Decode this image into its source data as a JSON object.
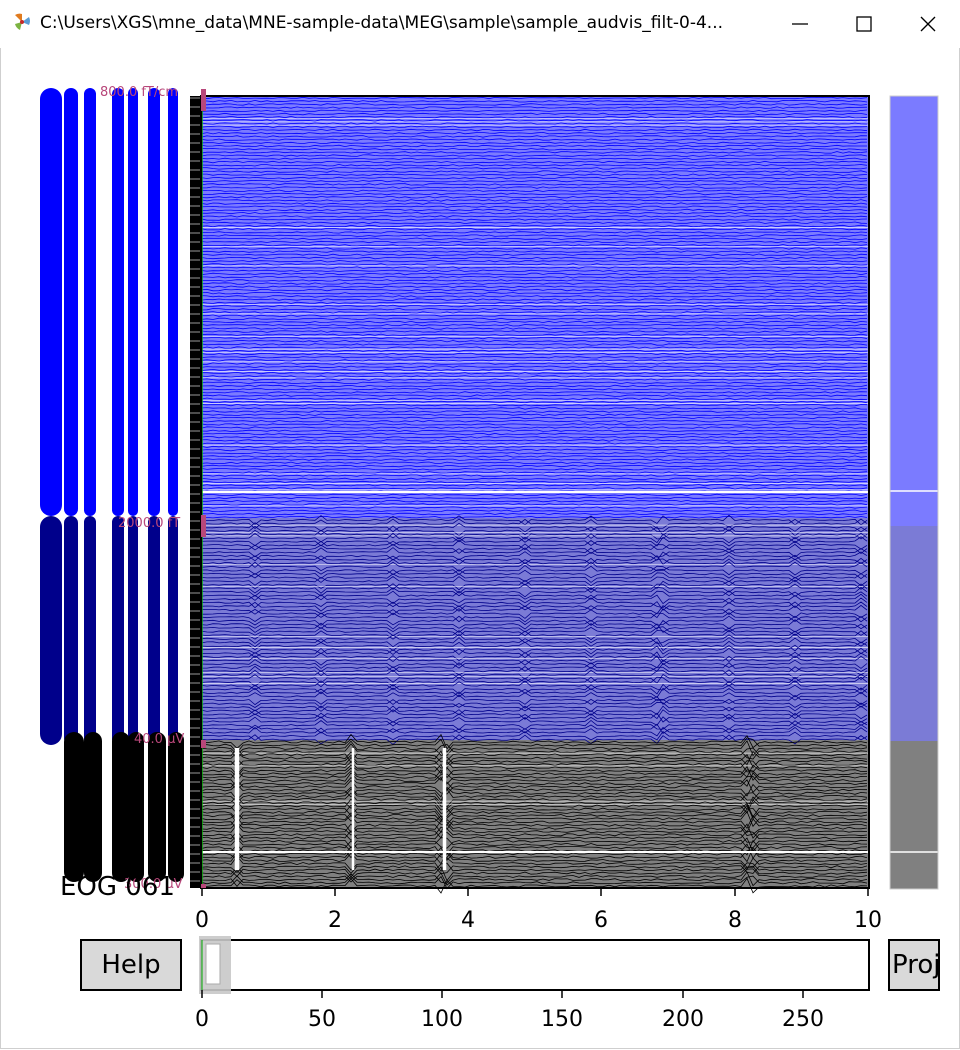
{
  "window": {
    "title": "C:\\Users\\XGS\\mne_data\\MNE-sample-data\\MEG\\sample\\sample_audvis_filt-0-4...",
    "minimize_icon": "minimize-icon",
    "maximize_icon": "maximize-icon",
    "close_icon": "close-icon"
  },
  "plot": {
    "x_ticks": [
      "0",
      "2",
      "4",
      "6",
      "8",
      "10"
    ],
    "x_range": [
      0,
      10
    ],
    "scalebars": [
      {
        "label": "800.0 fT/cm",
        "channel_type": "grad"
      },
      {
        "label": "2000.0 fT",
        "channel_type": "mag"
      },
      {
        "label": "40.0 µV",
        "channel_type": "eeg"
      },
      {
        "label": "300.0 µV",
        "channel_type": "eog"
      }
    ],
    "last_channel_label": "EOG 061",
    "colors": {
      "grad": "#0000ff",
      "mag": "#00008b",
      "eeg": "#000000",
      "eog": "#000000",
      "grad_bg": "#7b7bff",
      "mag_bg": "#7b7bd6",
      "eeg_bg": "#808080",
      "scalebar": "#b8477a",
      "cursor": "#00aa00"
    }
  },
  "navigation": {
    "help_label": "Help",
    "proj_label": "Proj",
    "time_ticks": [
      "0",
      "50",
      "100",
      "150",
      "200",
      "250"
    ],
    "time_range": [
      0,
      277
    ],
    "visible_window": [
      0,
      10
    ]
  }
}
